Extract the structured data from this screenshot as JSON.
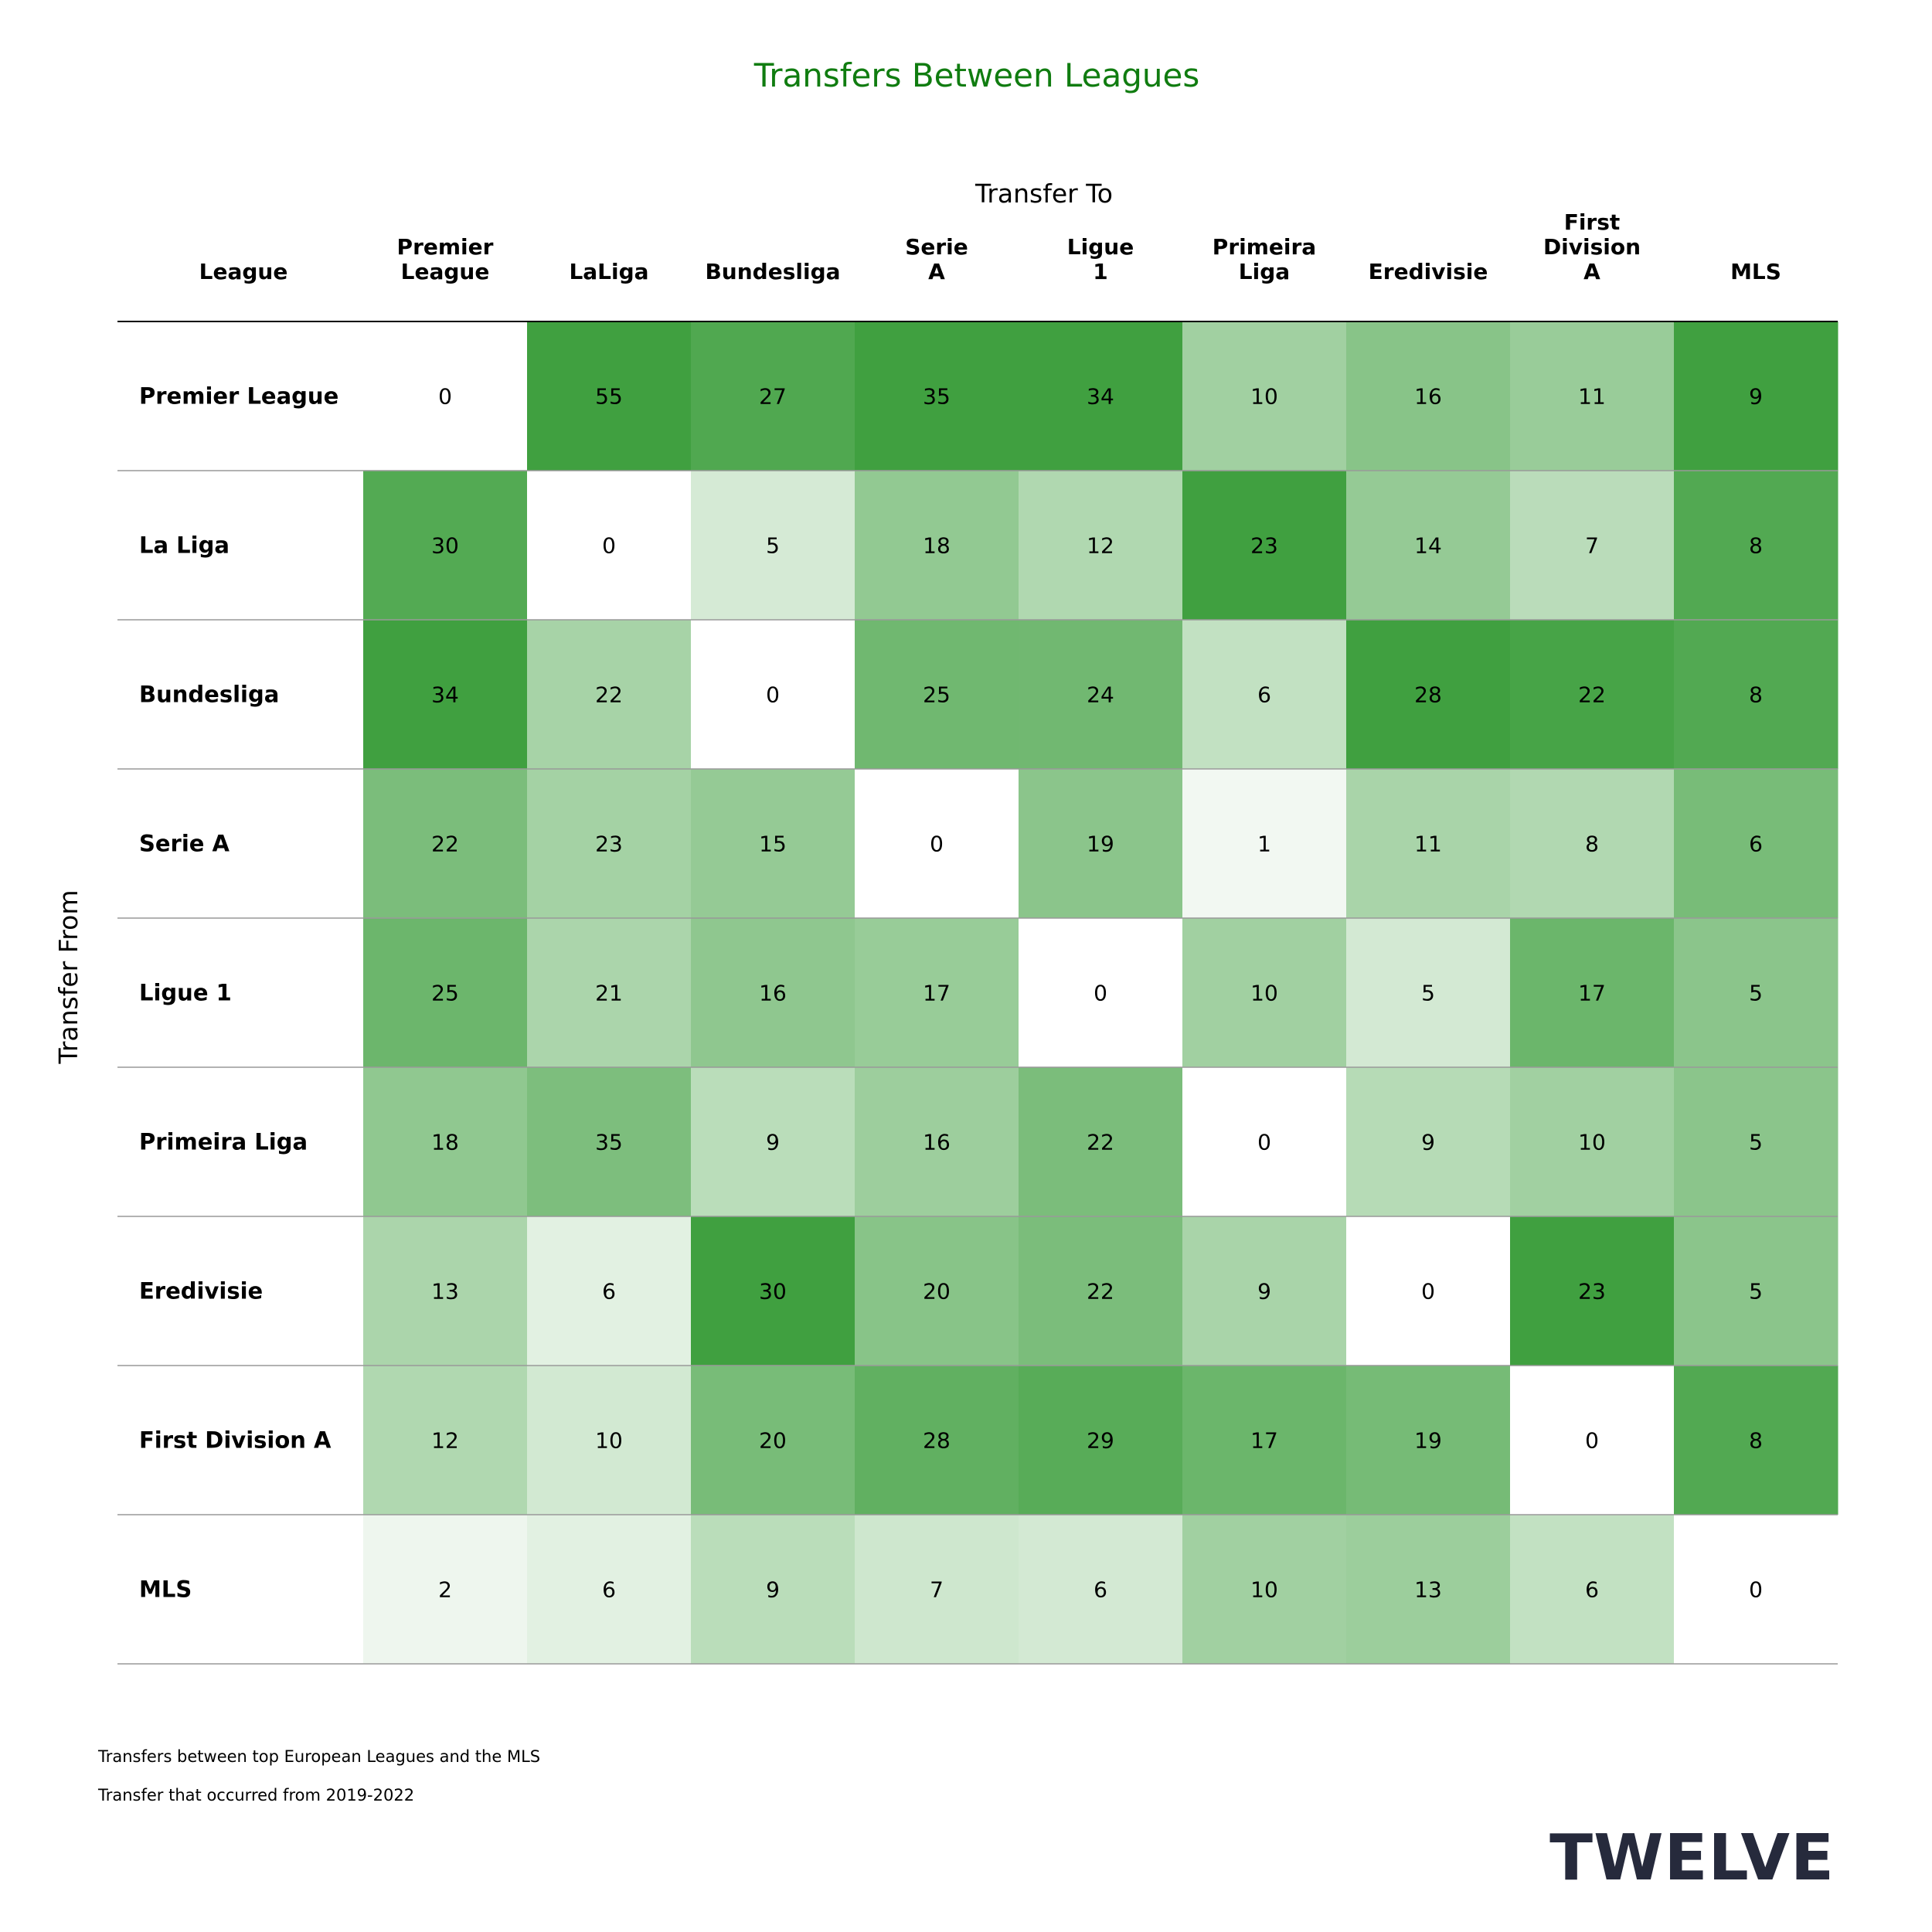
{
  "chart_data": {
    "type": "heatmap",
    "title": "Transfers Between Leagues",
    "xlabel": "Transfer To",
    "ylabel": "Transfer From",
    "corner_label": "League",
    "columns": [
      "Premier League",
      "LaLiga",
      "Bundesliga",
      "Serie A",
      "Ligue 1",
      "Primeira Liga",
      "Eredivisie",
      "First Division A",
      "MLS"
    ],
    "column_header_lines": [
      [
        "Premier",
        "League"
      ],
      [
        "LaLiga"
      ],
      [
        "Bundesliga"
      ],
      [
        "Serie",
        "A"
      ],
      [
        "Ligue",
        "1"
      ],
      [
        "Primeira",
        "Liga"
      ],
      [
        "Eredivisie"
      ],
      [
        "First",
        "Division",
        "A"
      ],
      [
        "MLS"
      ]
    ],
    "rows": [
      "Premier League",
      "La Liga",
      "Bundesliga",
      "Serie A",
      "Ligue 1",
      "Primeira Liga",
      "Eredivisie",
      "First Division A",
      "MLS"
    ],
    "values": [
      [
        0,
        55,
        27,
        35,
        34,
        10,
        16,
        11,
        9
      ],
      [
        30,
        0,
        5,
        18,
        12,
        23,
        14,
        7,
        8
      ],
      [
        34,
        22,
        0,
        25,
        24,
        6,
        28,
        22,
        8
      ],
      [
        22,
        23,
        15,
        0,
        19,
        1,
        11,
        8,
        6
      ],
      [
        25,
        21,
        16,
        17,
        0,
        10,
        5,
        17,
        5
      ],
      [
        18,
        35,
        9,
        16,
        22,
        0,
        9,
        10,
        5
      ],
      [
        13,
        6,
        30,
        20,
        22,
        9,
        0,
        23,
        5
      ],
      [
        12,
        10,
        20,
        28,
        29,
        17,
        19,
        0,
        8
      ],
      [
        2,
        6,
        9,
        7,
        6,
        10,
        13,
        6,
        0
      ]
    ],
    "color_scale": "column-normalized greens",
    "colors": {
      "min": "#ffffff",
      "max": "#40a040",
      "title": "#107c10"
    }
  },
  "footnotes": [
    "Transfers between top European Leagues and the MLS",
    "Transfer that occurred from 2019-2022"
  ],
  "logo": "TWELVE"
}
